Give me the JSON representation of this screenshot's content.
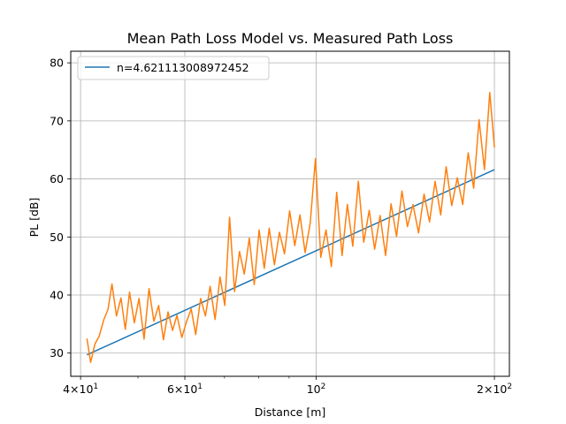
{
  "chart_data": {
    "type": "line",
    "title": "Mean Path Loss Model vs. Measured Path Loss",
    "xlabel": "Distance [m]",
    "ylabel": "PL [dB]",
    "xscale": "log",
    "xlim": [
      38.5,
      212
    ],
    "ylim": [
      26,
      82
    ],
    "grid": true,
    "legend": {
      "placement": "top-left",
      "entries": [
        "n=4.621113008972452"
      ]
    },
    "colors": {
      "model": "#1f77b4",
      "measured": "#ff7f0e",
      "grid": "#b0b0b0"
    },
    "x_ticks": [
      {
        "value": 40,
        "base": "4",
        "mult": "×",
        "pow10": "10",
        "exp": "1"
      },
      {
        "value": 60,
        "base": "6",
        "mult": "×",
        "pow10": "10",
        "exp": "1"
      },
      {
        "value": 100,
        "base": "",
        "mult": "",
        "pow10": "10",
        "exp": "2"
      },
      {
        "value": 200,
        "base": "2",
        "mult": "×",
        "pow10": "10",
        "exp": "2"
      }
    ],
    "x_minor_ticks": [
      50,
      70,
      80,
      90
    ],
    "y_ticks": [
      30,
      40,
      50,
      60,
      70,
      80
    ],
    "series": [
      {
        "name": "n=4.621113008972452",
        "x": [
          41,
          200
        ],
        "values": [
          29.7,
          61.6
        ]
      },
      {
        "x": [
          41,
          41.6,
          42.3,
          43,
          43.8,
          44.5,
          45.2,
          46,
          46.8,
          47.6,
          48.4,
          49.3,
          50.2,
          51.2,
          52.2,
          53.2,
          54.2,
          55.2,
          56.2,
          57.2,
          58.2,
          59.3,
          60.4,
          61.5,
          62.6,
          63.8,
          65,
          66.2,
          67.5,
          68.8,
          70.1,
          71.4,
          72.8,
          74.2,
          75.6,
          77.1,
          78.6,
          80.1,
          81.7,
          83.3,
          85,
          86.7,
          88.4,
          90.2,
          92,
          93.9,
          95.8,
          97.7,
          99.7,
          101.8,
          103.9,
          106.1,
          108.3,
          110.6,
          112.9,
          115.3,
          117.8,
          120.3,
          122.9,
          125.5,
          128.2,
          131,
          133.8,
          136.7,
          139.6,
          142.6,
          145.7,
          148.9,
          152.1,
          155.4,
          158.8,
          162.3,
          165.8,
          169.4,
          173.1,
          176.8,
          180.6,
          184.5,
          188.4,
          192.4,
          196.4,
          200
        ],
        "values": [
          32.5,
          28.4,
          31.6,
          32.9,
          35.8,
          37.5,
          41.9,
          36.4,
          39.5,
          34.1,
          40.5,
          35.2,
          39.4,
          32.4,
          41.1,
          35.5,
          38.2,
          32.3,
          37.1,
          33.9,
          36.5,
          32.7,
          35.4,
          37.6,
          33.2,
          39.4,
          36.4,
          41.5,
          35.8,
          43.1,
          38.2,
          53.4,
          40.6,
          47.5,
          43.6,
          49.8,
          41.8,
          51.2,
          44.6,
          51.5,
          45.2,
          50.8,
          47.1,
          54.5,
          48.5,
          53.8,
          47.3,
          52.4,
          63.5,
          46.5,
          51.2,
          44.9,
          57.7,
          46.8,
          55.6,
          48.4,
          59.6,
          49.1,
          54.6,
          47.9,
          53.7,
          46.8,
          55.7,
          50.1,
          57.9,
          51.8,
          55.6,
          50.7,
          57.4,
          52.6,
          59.6,
          53.8,
          62.1,
          55.4,
          60.2,
          55.6,
          64.5,
          58.4,
          70.2,
          61.6,
          74.9,
          65.4
        ]
      }
    ]
  }
}
